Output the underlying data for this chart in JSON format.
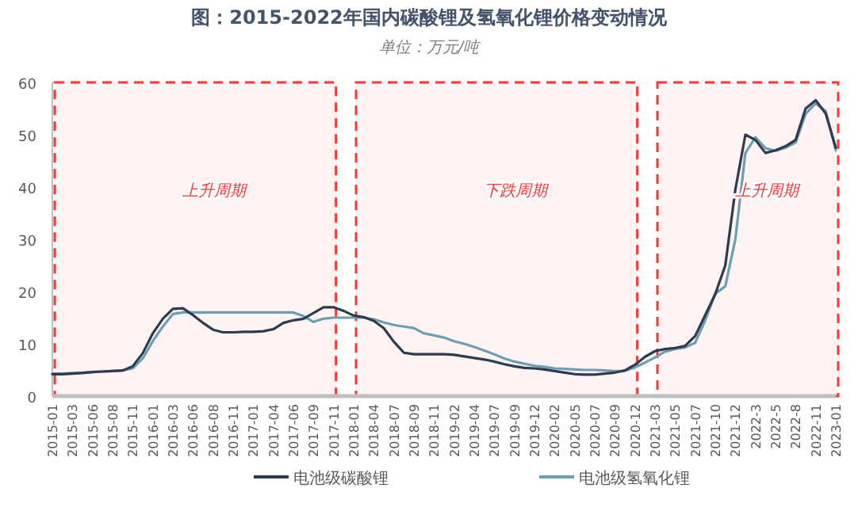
{
  "chart_data": {
    "type": "line",
    "title": "图：2015-2022年国内碳酸锂及氢氧化锂价格变动情况",
    "subtitle": "单位：万元/吨",
    "categories": [
      "2015-01",
      null,
      "2015-03",
      null,
      "2015-06",
      null,
      "2015-08",
      null,
      "2015-11",
      null,
      "2016-01",
      null,
      "2016-03",
      null,
      "2016-06",
      null,
      "2016-08",
      null,
      "2016-11",
      null,
      "2017-01",
      null,
      "2017-04",
      null,
      "2017-06",
      null,
      "2017-09",
      null,
      "2017-11",
      null,
      "2018-01",
      null,
      "2018-04",
      null,
      "2018-07",
      null,
      "2018-09",
      null,
      "2018-11",
      null,
      "2019-02",
      null,
      "2019-04",
      null,
      "2019-07",
      null,
      "2019-09",
      null,
      "2019-12",
      null,
      "2020-02",
      null,
      "2020-05",
      null,
      "2020-07",
      null,
      "2020-09",
      null,
      "2020-12",
      null,
      "2021-03",
      null,
      "2021-05",
      null,
      "2021-07",
      null,
      "2021-10",
      null,
      "2021-12",
      null,
      "2022-3",
      null,
      "2022-5",
      null,
      "2022-8",
      null,
      "2022-11",
      null,
      "2023-01"
    ],
    "series": [
      {
        "name": "电池级碳酸锂",
        "color": "#2e3b4e",
        "values": [
          4.2,
          4.2,
          4.3,
          4.4,
          4.6,
          4.7,
          4.8,
          4.9,
          5.7,
          8.2,
          12,
          14.8,
          16.7,
          16.8,
          15.5,
          14,
          12.7,
          12.2,
          12.2,
          12.3,
          12.3,
          12.4,
          12.8,
          14,
          14.5,
          14.8,
          15.9,
          17,
          17,
          16.3,
          15.4,
          15.1,
          14.4,
          13,
          10.4,
          8.3,
          8,
          8,
          8,
          8,
          7.9,
          7.6,
          7.3,
          7,
          6.6,
          6.1,
          5.7,
          5.4,
          5.3,
          5.1,
          4.8,
          4.5,
          4.2,
          4.1,
          4.1,
          4.3,
          4.5,
          4.9,
          6,
          7.5,
          8.6,
          9,
          9.2,
          9.6,
          11.5,
          15.5,
          19.5,
          25,
          39.5,
          50,
          49,
          46.5,
          47,
          47.8,
          49,
          55,
          56.6,
          54,
          47.5
        ]
      },
      {
        "name": "电池级氢氧化锂",
        "color": "#6a9fb5",
        "values": [
          4.3,
          4.3,
          4.4,
          4.5,
          4.6,
          4.7,
          4.8,
          4.9,
          5.3,
          7.2,
          10.5,
          13.3,
          15.7,
          16,
          16,
          16,
          16,
          16,
          16,
          16,
          16,
          16,
          16,
          16,
          16,
          15.3,
          14.2,
          14.8,
          15,
          15,
          15,
          15,
          14.7,
          14.1,
          13.6,
          13.3,
          13,
          12,
          11.6,
          11.2,
          10.5,
          10,
          9.4,
          8.7,
          8,
          7.2,
          6.6,
          6.2,
          5.8,
          5.6,
          5.3,
          5.2,
          5.1,
          5,
          5,
          4.9,
          4.8,
          4.8,
          5.5,
          6.4,
          7.4,
          8.5,
          9,
          9.3,
          10.2,
          14.5,
          19.6,
          21,
          30,
          46.5,
          49.5,
          47.4,
          46.9,
          47.5,
          48.5,
          54,
          56,
          54.5,
          47
        ]
      }
    ],
    "ylim": [
      0,
      60
    ],
    "yticks": [
      0,
      10,
      20,
      30,
      40,
      50,
      60
    ],
    "bands": [
      {
        "axis": "x",
        "from": "2015-01",
        "to": "2017-11",
        "label": "上升周期",
        "color": "#ff3333"
      },
      {
        "axis": "x",
        "from": "2018-01",
        "to": "2020-12",
        "label": "下跌周期",
        "color": "#ff3333"
      },
      {
        "axis": "x",
        "from": "2021-03",
        "to": "2023-01",
        "label": "上升周期",
        "color": "#ff3333"
      }
    ],
    "legend": "bottom"
  }
}
